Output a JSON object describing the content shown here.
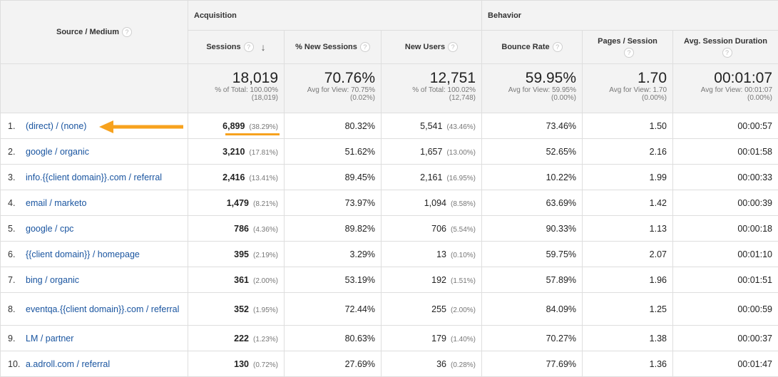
{
  "headers": {
    "source_medium": "Source / Medium",
    "acquisition": "Acquisition",
    "behavior": "Behavior",
    "sessions": "Sessions",
    "new_sessions": "% New Sessions",
    "new_users": "New Users",
    "bounce_rate": "Bounce Rate",
    "pages_session": "Pages / Session",
    "avg_duration": "Avg. Session Duration",
    "help_glyph": "?",
    "sort_glyph": "↓"
  },
  "totals": {
    "sessions": "18,019",
    "sessions_sub1": "% of Total: 100.00%",
    "sessions_sub2": "(18,019)",
    "new_sessions": "70.76%",
    "new_sessions_sub1": "Avg for View: 70.75%",
    "new_sessions_sub2": "(0.02%)",
    "new_users": "12,751",
    "new_users_sub1": "% of Total: 100.02%",
    "new_users_sub2": "(12,748)",
    "bounce_rate": "59.95%",
    "bounce_rate_sub1": "Avg for View: 59.95%",
    "bounce_rate_sub2": "(0.00%)",
    "pages_session": "1.70",
    "pages_session_sub1": "Avg for View: 1.70",
    "pages_session_sub2": "(0.00%)",
    "avg_duration": "00:01:07",
    "avg_duration_sub1": "Avg for View: 00:01:07",
    "avg_duration_sub2": "(0.00%)"
  },
  "rows": [
    {
      "num": "1.",
      "source": "(direct) / (none)",
      "sessions": "6,899",
      "sessions_pct": "(38.29%)",
      "new_sessions": "80.32%",
      "new_users": "5,541",
      "new_users_pct": "(43.46%)",
      "bounce": "73.46%",
      "pages": "1.50",
      "duration": "00:00:57"
    },
    {
      "num": "2.",
      "source": "google / organic",
      "sessions": "3,210",
      "sessions_pct": "(17.81%)",
      "new_sessions": "51.62%",
      "new_users": "1,657",
      "new_users_pct": "(13.00%)",
      "bounce": "52.65%",
      "pages": "2.16",
      "duration": "00:01:58"
    },
    {
      "num": "3.",
      "source": "info.{{client domain}}.com / referral",
      "sessions": "2,416",
      "sessions_pct": "(13.41%)",
      "new_sessions": "89.45%",
      "new_users": "2,161",
      "new_users_pct": "(16.95%)",
      "bounce": "10.22%",
      "pages": "1.99",
      "duration": "00:00:33"
    },
    {
      "num": "4.",
      "source": "email / marketo",
      "sessions": "1,479",
      "sessions_pct": "(8.21%)",
      "new_sessions": "73.97%",
      "new_users": "1,094",
      "new_users_pct": "(8.58%)",
      "bounce": "63.69%",
      "pages": "1.42",
      "duration": "00:00:39"
    },
    {
      "num": "5.",
      "source": "google / cpc",
      "sessions": "786",
      "sessions_pct": "(4.36%)",
      "new_sessions": "89.82%",
      "new_users": "706",
      "new_users_pct": "(5.54%)",
      "bounce": "90.33%",
      "pages": "1.13",
      "duration": "00:00:18"
    },
    {
      "num": "6.",
      "source": "{{client domain}} / homepage",
      "sessions": "395",
      "sessions_pct": "(2.19%)",
      "new_sessions": "3.29%",
      "new_users": "13",
      "new_users_pct": "(0.10%)",
      "bounce": "59.75%",
      "pages": "2.07",
      "duration": "00:01:10"
    },
    {
      "num": "7.",
      "source": "bing / organic",
      "sessions": "361",
      "sessions_pct": "(2.00%)",
      "new_sessions": "53.19%",
      "new_users": "192",
      "new_users_pct": "(1.51%)",
      "bounce": "57.89%",
      "pages": "1.96",
      "duration": "00:01:51"
    },
    {
      "num": "8.",
      "source": "eventqa.{{client domain}}.com / referral",
      "sessions": "352",
      "sessions_pct": "(1.95%)",
      "new_sessions": "72.44%",
      "new_users": "255",
      "new_users_pct": "(2.00%)",
      "bounce": "84.09%",
      "pages": "1.25",
      "duration": "00:00:59"
    },
    {
      "num": "9.",
      "source": "LM / partner",
      "sessions": "222",
      "sessions_pct": "(1.23%)",
      "new_sessions": "80.63%",
      "new_users": "179",
      "new_users_pct": "(1.40%)",
      "bounce": "70.27%",
      "pages": "1.38",
      "duration": "00:00:37"
    },
    {
      "num": "10.",
      "source": "a.adroll.com / referral",
      "sessions": "130",
      "sessions_pct": "(0.72%)",
      "new_sessions": "27.69%",
      "new_users": "36",
      "new_users_pct": "(0.28%)",
      "bounce": "77.69%",
      "pages": "1.36",
      "duration": "00:01:47"
    }
  ],
  "colors": {
    "link": "#1a55a0",
    "annotation": "#f7a21e",
    "header_bg": "#f3f3f3"
  }
}
